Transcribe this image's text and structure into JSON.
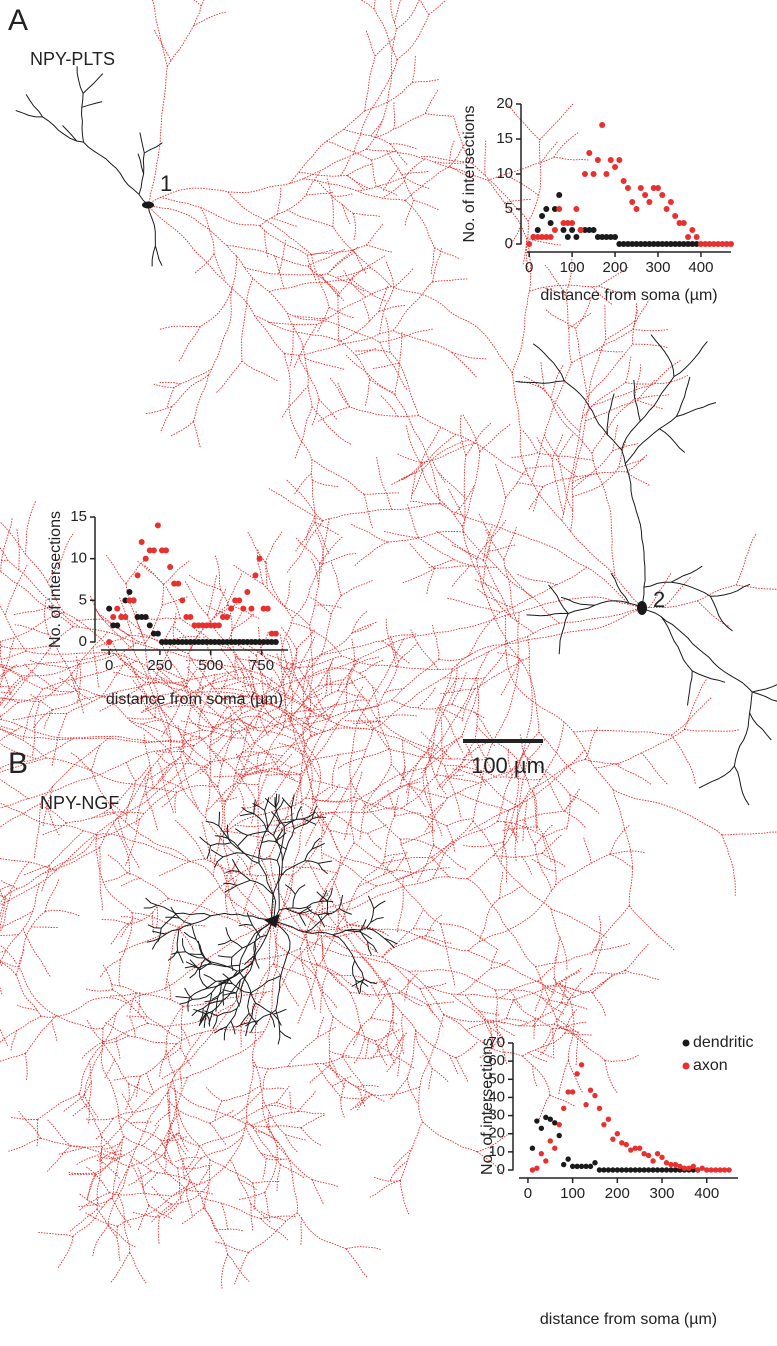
{
  "panels": [
    {
      "label": "A",
      "title": "NPY-PLTS"
    },
    {
      "label": "B",
      "title": "NPY-NGF"
    }
  ],
  "cell_labels": [
    "1",
    "2"
  ],
  "scale_bar": "100 µm",
  "chart_data": [
    {
      "type": "scatter",
      "x_label": "distance from soma (µm)",
      "y_label": "No. of intersections",
      "x": [
        0,
        10,
        20,
        30,
        40,
        50,
        60,
        70,
        80,
        90,
        100,
        110,
        120,
        130,
        140,
        150,
        160,
        170,
        180,
        190,
        200,
        210,
        220,
        230,
        240,
        250,
        260,
        270,
        280,
        290,
        300,
        310,
        320,
        330,
        340,
        350,
        360,
        370,
        380,
        390,
        400,
        410,
        420,
        430,
        440,
        450,
        460,
        470
      ],
      "xlim": [
        -5,
        470
      ],
      "xticks": [
        0,
        100,
        200,
        300,
        400
      ],
      "ylim": [
        0,
        20
      ],
      "yticks": [
        0,
        5,
        10,
        15,
        20
      ],
      "series": [
        {
          "color": "#1a1a1a",
          "values": [
            null,
            1,
            2,
            4,
            5,
            3,
            5,
            7,
            2,
            1,
            2,
            1,
            2,
            2,
            2,
            2,
            1,
            1,
            1,
            1,
            1,
            0,
            0,
            0,
            0,
            0,
            0,
            0,
            0,
            0,
            0,
            0,
            0,
            0,
            0,
            0,
            0,
            0,
            0,
            0,
            null,
            null,
            null,
            null,
            null,
            null,
            null,
            null
          ]
        },
        {
          "color": "#e8312f",
          "values": [
            0,
            1,
            1,
            1,
            1,
            1,
            2,
            5,
            3,
            3,
            3,
            5,
            2,
            10,
            13,
            10,
            12,
            17,
            10,
            12,
            11,
            12,
            9,
            8,
            6,
            5,
            8,
            7,
            6,
            8,
            8,
            7,
            5,
            6,
            4,
            3,
            3,
            1,
            2,
            1,
            0,
            0,
            0,
            0,
            0,
            0,
            0,
            0
          ]
        }
      ]
    },
    {
      "type": "scatter",
      "x_label": "distance from soma (µm)",
      "y_label": "No. of intersections",
      "x": [
        0,
        20,
        40,
        60,
        80,
        100,
        120,
        140,
        160,
        180,
        200,
        220,
        240,
        260,
        280,
        300,
        320,
        340,
        360,
        380,
        400,
        420,
        440,
        460,
        480,
        500,
        520,
        540,
        560,
        580,
        600,
        620,
        640,
        660,
        680,
        700,
        720,
        740,
        760,
        780,
        800,
        820
      ],
      "xlim": [
        -40,
        880
      ],
      "xticks": [
        0,
        250,
        500,
        750
      ],
      "ylim": [
        0,
        15
      ],
      "yticks": [
        0,
        5,
        10,
        15
      ],
      "series": [
        {
          "color": "#1a1a1a",
          "values": [
            4,
            2,
            2,
            3,
            5,
            6,
            5,
            3,
            3,
            3,
            2,
            1,
            1,
            0,
            0,
            0,
            0,
            0,
            0,
            0,
            0,
            0,
            0,
            0,
            0,
            0,
            0,
            0,
            0,
            0,
            0,
            0,
            0,
            0,
            0,
            0,
            0,
            0,
            0,
            0,
            0,
            0
          ]
        },
        {
          "color": "#e8312f",
          "values": [
            0,
            3,
            4,
            3,
            3,
            5,
            5,
            8,
            12,
            10,
            11,
            11,
            14,
            11,
            11,
            9,
            7,
            7,
            5,
            3,
            3,
            2,
            2,
            2,
            2,
            2,
            2,
            2,
            3,
            3,
            4,
            5,
            5,
            4,
            6,
            4,
            8,
            10,
            4,
            4,
            1,
            1
          ]
        }
      ]
    },
    {
      "type": "scatter",
      "x_label": "distance from soma (µm)",
      "y_label": "No. of intersections",
      "legend": "upper right",
      "x": [
        10,
        20,
        30,
        40,
        50,
        60,
        70,
        80,
        90,
        100,
        110,
        120,
        130,
        140,
        150,
        160,
        170,
        180,
        190,
        200,
        210,
        220,
        230,
        240,
        250,
        260,
        270,
        280,
        290,
        300,
        310,
        320,
        330,
        340,
        350,
        360,
        370,
        380,
        390,
        400,
        410,
        420,
        430,
        440,
        450
      ],
      "xlim": [
        -20,
        470
      ],
      "xticks": [
        0,
        100,
        200,
        300,
        400
      ],
      "ylim": [
        0,
        70
      ],
      "yticks": [
        0,
        10,
        20,
        30,
        40,
        50,
        60,
        70
      ],
      "series": [
        {
          "name": "dendritic",
          "color": "#1a1a1a",
          "values": [
            12,
            27,
            23,
            29,
            28,
            26,
            19,
            3,
            6,
            2,
            2,
            2,
            2,
            2,
            4,
            0,
            0,
            0,
            0,
            0,
            0,
            0,
            0,
            0,
            0,
            0,
            0,
            0,
            0,
            0,
            0,
            0,
            0,
            0,
            0,
            0,
            0,
            0,
            null,
            null,
            null,
            null,
            null,
            null,
            null
          ]
        },
        {
          "name": "axon",
          "color": "#e8312f",
          "values": [
            0,
            1,
            9,
            5,
            16,
            12,
            25,
            34,
            43,
            43,
            53,
            58,
            36,
            44,
            41,
            34,
            25,
            28,
            17,
            20,
            15,
            14,
            11,
            12,
            12,
            9,
            8,
            5,
            9,
            7,
            4,
            3,
            3,
            2,
            1,
            1,
            2,
            0,
            1,
            0,
            0,
            0,
            0,
            0,
            0
          ]
        }
      ]
    }
  ]
}
